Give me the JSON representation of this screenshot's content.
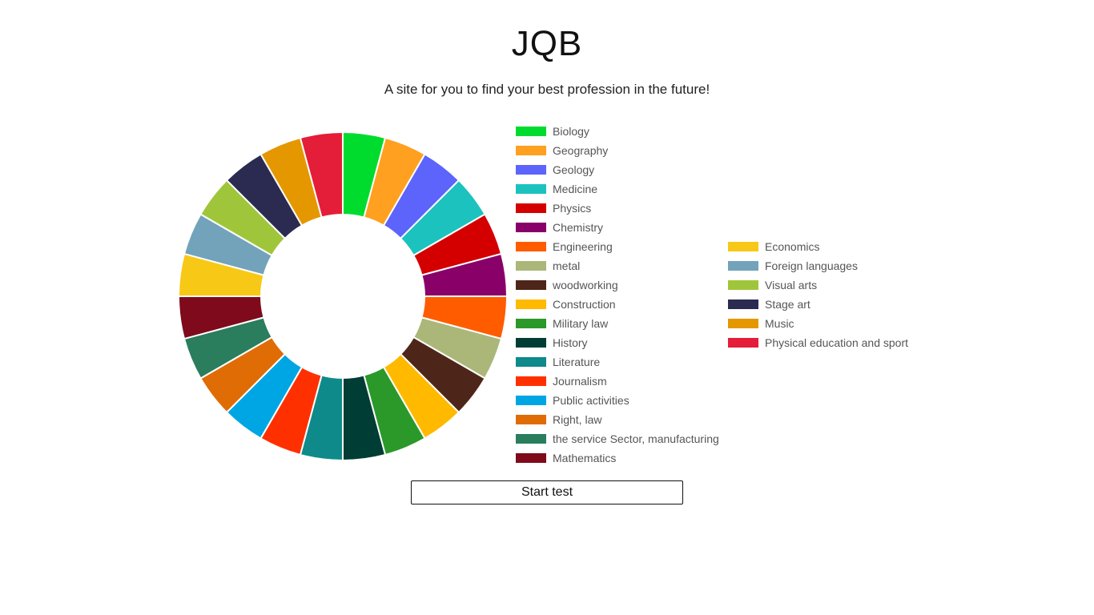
{
  "header": {
    "title": "JQB",
    "subtitle": "A site for you to find your best profession in the future!"
  },
  "actions": {
    "start_label": "Start test"
  },
  "chart_data": {
    "type": "pie",
    "donut": true,
    "legend_position": "right",
    "categories": [
      "Biology",
      "Geography",
      "Geology",
      "Medicine",
      "Physics",
      "Chemistry",
      "Engineering",
      "metal",
      "woodworking",
      "Construction",
      "Military law",
      "History",
      "Literature",
      "Journalism",
      "Public activities",
      "Right, law",
      "the service Sector, manufacturing",
      "Mathematics",
      "Economics",
      "Foreign languages",
      "Visual arts",
      "Stage art",
      "Music",
      "Physical education and sport"
    ],
    "values": [
      1,
      1,
      1,
      1,
      1,
      1,
      1,
      1,
      1,
      1,
      1,
      1,
      1,
      1,
      1,
      1,
      1,
      1,
      1,
      1,
      1,
      1,
      1,
      1
    ],
    "colors": [
      "#00dc2e",
      "#ffa020",
      "#5c64fb",
      "#1cc2be",
      "#d40000",
      "#880068",
      "#ff5c00",
      "#abb779",
      "#4e2619",
      "#ffba00",
      "#2b982a",
      "#003d34",
      "#0e8a8b",
      "#ff3000",
      "#00a6e4",
      "#e06c06",
      "#2a7d5d",
      "#7e0a1c",
      "#f7c815",
      "#72a3bb",
      "#9fc63a",
      "#2b2a51",
      "#e59700",
      "#e41d38"
    ]
  }
}
